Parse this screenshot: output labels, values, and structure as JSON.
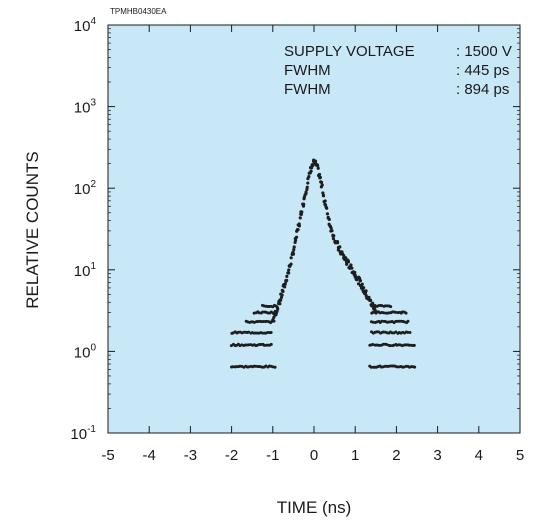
{
  "chart_data": {
    "type": "scatter",
    "figure_code": "TPMHB0430EA",
    "xlabel": "TIME (ns)",
    "ylabel": "RELATIVE COUNTS",
    "xlim": [
      -5,
      5
    ],
    "ylim": [
      0.1,
      10000
    ],
    "yscale": "log",
    "grid": false,
    "plot_background": "#c8e8f8",
    "marker_color": "#1e1e1e",
    "x_ticks": [
      "-5",
      "-4",
      "-3",
      "-2",
      "-1",
      "0",
      "1",
      "2",
      "3",
      "4",
      "5"
    ],
    "y_ticks": [
      {
        "base": "10",
        "exp": "-1"
      },
      {
        "base": "10",
        "exp": "0"
      },
      {
        "base": "10",
        "exp": "1"
      },
      {
        "base": "10",
        "exp": "2"
      },
      {
        "base": "10",
        "exp": "3"
      },
      {
        "base": "10",
        "exp": "4"
      }
    ],
    "annotations": [
      {
        "label": "SUPPLY VOLTAGE",
        "value": ": 1500 V"
      },
      {
        "label": "FWHM",
        "value": ": 445 ps"
      },
      {
        "label": "FWHM",
        "value": ": 894 ps"
      }
    ],
    "peak": {
      "x": 0.0,
      "y": 205
    },
    "rising_edge": [
      [
        -1.0,
        2.4
      ],
      [
        -0.9,
        3.3
      ],
      [
        -0.8,
        4.6
      ],
      [
        -0.7,
        6.8
      ],
      [
        -0.6,
        10.5
      ],
      [
        -0.5,
        17
      ],
      [
        -0.4,
        29
      ],
      [
        -0.3,
        52
      ],
      [
        -0.2,
        92
      ],
      [
        -0.1,
        150
      ],
      [
        -0.05,
        185
      ],
      [
        0.0,
        205
      ]
    ],
    "falling_edge": [
      [
        0.0,
        205
      ],
      [
        0.05,
        195
      ],
      [
        0.1,
        165
      ],
      [
        0.2,
        100
      ],
      [
        0.3,
        56
      ],
      [
        0.4,
        34
      ],
      [
        0.5,
        24
      ],
      [
        0.6,
        18.5
      ],
      [
        0.7,
        15
      ],
      [
        0.8,
        12.5
      ],
      [
        0.9,
        10.5
      ],
      [
        1.0,
        8.8
      ],
      [
        1.1,
        7.2
      ],
      [
        1.2,
        5.8
      ],
      [
        1.3,
        4.7
      ],
      [
        1.4,
        3.8
      ],
      [
        1.5,
        3.2
      ]
    ],
    "left_tail_levels": [
      {
        "y": 0.65,
        "x_range": [
          -2.0,
          -0.95
        ]
      },
      {
        "y": 1.2,
        "x_range": [
          -2.0,
          -1.0
        ]
      },
      {
        "y": 1.7,
        "x_range": [
          -2.0,
          -1.0
        ]
      },
      {
        "y": 2.3,
        "x_range": [
          -1.65,
          -0.95
        ]
      },
      {
        "y": 3.0,
        "x_range": [
          -1.45,
          -0.9
        ]
      },
      {
        "y": 3.6,
        "x_range": [
          -1.25,
          -0.9
        ]
      }
    ],
    "right_tail_levels": [
      {
        "y": 0.65,
        "x_range": [
          1.35,
          2.45
        ]
      },
      {
        "y": 1.2,
        "x_range": [
          1.35,
          2.45
        ]
      },
      {
        "y": 1.7,
        "x_range": [
          1.4,
          2.35
        ]
      },
      {
        "y": 2.3,
        "x_range": [
          1.4,
          2.3
        ]
      },
      {
        "y": 3.0,
        "x_range": [
          1.4,
          2.25
        ]
      },
      {
        "y": 3.6,
        "x_range": [
          1.4,
          1.9
        ]
      }
    ]
  }
}
